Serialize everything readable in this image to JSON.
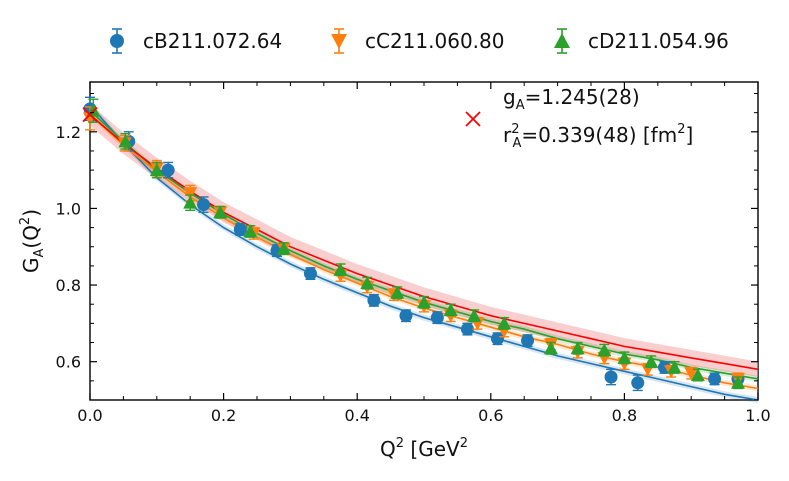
{
  "chart_data": {
    "type": "scatter",
    "title": "",
    "xlabel": "Q",
    "xlabel_sup": "2",
    "xlabel_unit_open": " [GeV",
    "xlabel_unit_sup": "2",
    "xlabel_unit_close": "]",
    "ylabel_main": "G",
    "ylabel_sub": "A",
    "ylabel_open": "(Q",
    "ylabel_sup": "2",
    "ylabel_close": ")",
    "xlim": [
      0.0,
      1.0
    ],
    "ylim": [
      0.5,
      1.33
    ],
    "xticks": [
      0.0,
      0.2,
      0.4,
      0.6,
      0.8,
      1.0
    ],
    "xtick_labels": [
      "0.0",
      "0.2",
      "0.4",
      "0.6",
      "0.8",
      "1.0"
    ],
    "yticks": [
      0.6,
      0.8,
      1.0,
      1.2
    ],
    "ytick_labels": [
      "0.6",
      "0.8",
      "1.0",
      "1.2"
    ],
    "grid": false,
    "legend_position": "top",
    "colors": {
      "cB": "#1f77b4",
      "cC": "#ff7f0e",
      "cD": "#2ca02c",
      "fit": "#ff0000",
      "band": "#f4a6a6"
    },
    "series": [
      {
        "name": "cB211.072.64",
        "marker": "circle",
        "points": [
          {
            "x": 0.0,
            "y": 1.26,
            "err": 0.03
          },
          {
            "x": 0.058,
            "y": 1.175,
            "err": 0.025
          },
          {
            "x": 0.117,
            "y": 1.1,
            "err": 0.02
          },
          {
            "x": 0.17,
            "y": 1.01,
            "err": 0.02
          },
          {
            "x": 0.225,
            "y": 0.945,
            "err": 0.015
          },
          {
            "x": 0.28,
            "y": 0.89,
            "err": 0.015
          },
          {
            "x": 0.33,
            "y": 0.83,
            "err": 0.015
          },
          {
            "x": 0.425,
            "y": 0.76,
            "err": 0.015
          },
          {
            "x": 0.473,
            "y": 0.72,
            "err": 0.015
          },
          {
            "x": 0.52,
            "y": 0.715,
            "err": 0.015
          },
          {
            "x": 0.565,
            "y": 0.685,
            "err": 0.015
          },
          {
            "x": 0.61,
            "y": 0.66,
            "err": 0.015
          },
          {
            "x": 0.655,
            "y": 0.655,
            "err": 0.015
          },
          {
            "x": 0.78,
            "y": 0.56,
            "err": 0.02
          },
          {
            "x": 0.82,
            "y": 0.545,
            "err": 0.02
          },
          {
            "x": 0.86,
            "y": 0.585,
            "err": 0.015
          },
          {
            "x": 0.935,
            "y": 0.555,
            "err": 0.015
          },
          {
            "x": 0.97,
            "y": 0.555,
            "err": 0.015
          }
        ],
        "fit": [
          [
            0.0,
            1.27
          ],
          [
            0.05,
            1.17
          ],
          [
            0.1,
            1.08
          ],
          [
            0.15,
            1.01
          ],
          [
            0.2,
            0.95
          ],
          [
            0.25,
            0.9
          ],
          [
            0.3,
            0.855
          ],
          [
            0.35,
            0.815
          ],
          [
            0.4,
            0.78
          ],
          [
            0.45,
            0.745
          ],
          [
            0.5,
            0.715
          ],
          [
            0.55,
            0.69
          ],
          [
            0.6,
            0.665
          ],
          [
            0.65,
            0.64
          ],
          [
            0.7,
            0.615
          ],
          [
            0.75,
            0.595
          ],
          [
            0.8,
            0.575
          ],
          [
            0.85,
            0.555
          ],
          [
            0.9,
            0.535
          ],
          [
            0.95,
            0.515
          ],
          [
            1.0,
            0.5
          ]
        ]
      },
      {
        "name": "cC211.060.80",
        "marker": "triangle-down",
        "points": [
          {
            "x": 0.0,
            "y": 1.235,
            "err": 0.03
          },
          {
            "x": 0.052,
            "y": 1.17,
            "err": 0.02
          },
          {
            "x": 0.1,
            "y": 1.105,
            "err": 0.02
          },
          {
            "x": 0.15,
            "y": 1.04,
            "err": 0.02
          },
          {
            "x": 0.195,
            "y": 0.99,
            "err": 0.015
          },
          {
            "x": 0.245,
            "y": 0.935,
            "err": 0.015
          },
          {
            "x": 0.29,
            "y": 0.895,
            "err": 0.015
          },
          {
            "x": 0.375,
            "y": 0.825,
            "err": 0.015
          },
          {
            "x": 0.415,
            "y": 0.795,
            "err": 0.015
          },
          {
            "x": 0.455,
            "y": 0.775,
            "err": 0.015
          },
          {
            "x": 0.5,
            "y": 0.745,
            "err": 0.015
          },
          {
            "x": 0.54,
            "y": 0.72,
            "err": 0.015
          },
          {
            "x": 0.58,
            "y": 0.7,
            "err": 0.015
          },
          {
            "x": 0.62,
            "y": 0.68,
            "err": 0.015
          },
          {
            "x": 0.69,
            "y": 0.645,
            "err": 0.015
          },
          {
            "x": 0.73,
            "y": 0.625,
            "err": 0.015
          },
          {
            "x": 0.77,
            "y": 0.61,
            "err": 0.015
          },
          {
            "x": 0.8,
            "y": 0.595,
            "err": 0.015
          },
          {
            "x": 0.835,
            "y": 0.58,
            "err": 0.015
          },
          {
            "x": 0.87,
            "y": 0.575,
            "err": 0.015
          },
          {
            "x": 0.9,
            "y": 0.57,
            "err": 0.015
          },
          {
            "x": 0.97,
            "y": 0.555,
            "err": 0.015
          }
        ],
        "fit": [
          [
            0.0,
            1.245
          ],
          [
            0.05,
            1.165
          ],
          [
            0.1,
            1.095
          ],
          [
            0.15,
            1.03
          ],
          [
            0.2,
            0.975
          ],
          [
            0.25,
            0.925
          ],
          [
            0.3,
            0.88
          ],
          [
            0.35,
            0.84
          ],
          [
            0.4,
            0.805
          ],
          [
            0.45,
            0.77
          ],
          [
            0.5,
            0.74
          ],
          [
            0.55,
            0.715
          ],
          [
            0.6,
            0.69
          ],
          [
            0.65,
            0.665
          ],
          [
            0.7,
            0.645
          ],
          [
            0.75,
            0.62
          ],
          [
            0.8,
            0.6
          ],
          [
            0.85,
            0.585
          ],
          [
            0.9,
            0.565
          ],
          [
            0.95,
            0.545
          ],
          [
            1.0,
            0.53
          ]
        ]
      },
      {
        "name": "cD211.054.96",
        "marker": "triangle-up",
        "points": [
          {
            "x": 0.005,
            "y": 1.255,
            "err": 0.03
          },
          {
            "x": 0.053,
            "y": 1.175,
            "err": 0.02
          },
          {
            "x": 0.1,
            "y": 1.1,
            "err": 0.02
          },
          {
            "x": 0.15,
            "y": 1.015,
            "err": 0.02
          },
          {
            "x": 0.195,
            "y": 0.99,
            "err": 0.015
          },
          {
            "x": 0.24,
            "y": 0.94,
            "err": 0.015
          },
          {
            "x": 0.29,
            "y": 0.895,
            "err": 0.015
          },
          {
            "x": 0.375,
            "y": 0.84,
            "err": 0.015
          },
          {
            "x": 0.415,
            "y": 0.805,
            "err": 0.015
          },
          {
            "x": 0.46,
            "y": 0.78,
            "err": 0.015
          },
          {
            "x": 0.5,
            "y": 0.755,
            "err": 0.015
          },
          {
            "x": 0.54,
            "y": 0.735,
            "err": 0.015
          },
          {
            "x": 0.575,
            "y": 0.72,
            "err": 0.015
          },
          {
            "x": 0.62,
            "y": 0.7,
            "err": 0.015
          },
          {
            "x": 0.69,
            "y": 0.635,
            "err": 0.015
          },
          {
            "x": 0.73,
            "y": 0.635,
            "err": 0.015
          },
          {
            "x": 0.77,
            "y": 0.63,
            "err": 0.015
          },
          {
            "x": 0.8,
            "y": 0.61,
            "err": 0.015
          },
          {
            "x": 0.84,
            "y": 0.6,
            "err": 0.015
          },
          {
            "x": 0.875,
            "y": 0.585,
            "err": 0.015
          },
          {
            "x": 0.91,
            "y": 0.565,
            "err": 0.015
          },
          {
            "x": 0.97,
            "y": 0.545,
            "err": 0.015
          }
        ],
        "fit": [
          [
            0.0,
            1.255
          ],
          [
            0.05,
            1.175
          ],
          [
            0.1,
            1.1
          ],
          [
            0.15,
            1.04
          ],
          [
            0.2,
            0.985
          ],
          [
            0.25,
            0.935
          ],
          [
            0.3,
            0.89
          ],
          [
            0.35,
            0.85
          ],
          [
            0.4,
            0.815
          ],
          [
            0.45,
            0.785
          ],
          [
            0.5,
            0.755
          ],
          [
            0.55,
            0.73
          ],
          [
            0.6,
            0.705
          ],
          [
            0.65,
            0.685
          ],
          [
            0.7,
            0.66
          ],
          [
            0.75,
            0.64
          ],
          [
            0.8,
            0.62
          ],
          [
            0.85,
            0.605
          ],
          [
            0.9,
            0.585
          ],
          [
            0.95,
            0.57
          ],
          [
            1.0,
            0.555
          ]
        ]
      }
    ],
    "continuum": {
      "marker_point": {
        "x": 0.0,
        "y": 1.245
      },
      "fit": [
        [
          0.0,
          1.245
        ],
        [
          0.05,
          1.17
        ],
        [
          0.1,
          1.105
        ],
        [
          0.15,
          1.045
        ],
        [
          0.2,
          0.99
        ],
        [
          0.25,
          0.945
        ],
        [
          0.3,
          0.9
        ],
        [
          0.35,
          0.865
        ],
        [
          0.4,
          0.83
        ],
        [
          0.45,
          0.8
        ],
        [
          0.5,
          0.77
        ],
        [
          0.55,
          0.745
        ],
        [
          0.6,
          0.72
        ],
        [
          0.65,
          0.7
        ],
        [
          0.7,
          0.68
        ],
        [
          0.75,
          0.66
        ],
        [
          0.8,
          0.64
        ],
        [
          0.85,
          0.625
        ],
        [
          0.9,
          0.61
        ],
        [
          0.95,
          0.595
        ],
        [
          1.0,
          0.58
        ]
      ],
      "band_halfwidth_start": 0.028,
      "band_halfwidth_end": 0.02
    },
    "annotation": {
      "line1_main": "g",
      "line1_sub": "A",
      "line1_value": "=1.245(28)",
      "line2_main": "r",
      "line2_sup": "2",
      "line2_sub": "A",
      "line2_value": "=0.339(48) [fm",
      "line2_unit_sup": "2",
      "line2_close": "]"
    }
  }
}
